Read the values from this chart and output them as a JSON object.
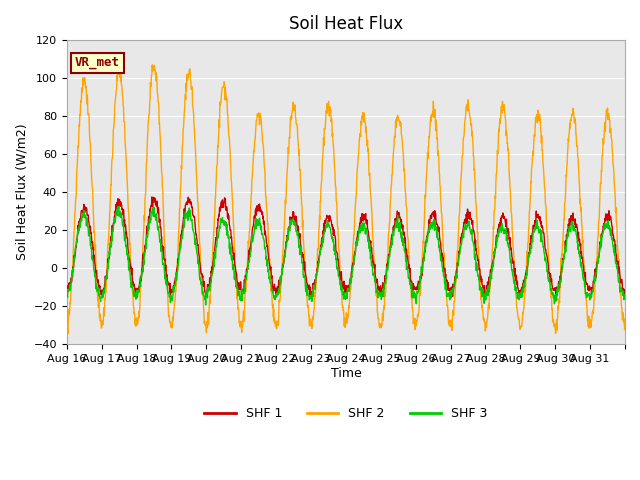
{
  "title": "Soil Heat Flux",
  "ylabel": "Soil Heat Flux (W/m2)",
  "xlabel": "Time",
  "ylim": [
    -40,
    120
  ],
  "bg_color": "#e8e8e8",
  "annotation_text": "VR_met",
  "annotation_color": "#8B0000",
  "annotation_bg": "#ffffcc",
  "legend_labels": [
    "SHF 1",
    "SHF 2",
    "SHF 3"
  ],
  "legend_colors": [
    "#cc0000",
    "#ffa500",
    "#00cc00"
  ],
  "xtick_labels": [
    "Aug 16",
    "Aug 17",
    "Aug 18",
    "Aug 19",
    "Aug 20",
    "Aug 21",
    "Aug 22",
    "Aug 23",
    "Aug 24",
    "Aug 25",
    "Aug 26",
    "Aug 27",
    "Aug 28",
    "Aug 29",
    "Aug 30",
    "Aug 31"
  ],
  "n_days": 16,
  "shf1_day_peaks": [
    32,
    35,
    36,
    36,
    35,
    33,
    27,
    27,
    27,
    27,
    28,
    28,
    27,
    27,
    26,
    27
  ],
  "shf2_day_peaks": [
    99,
    103,
    107,
    103,
    96,
    81,
    85,
    86,
    80,
    80,
    83,
    85,
    84,
    80,
    81,
    82
  ],
  "shf3_day_peaks": [
    28,
    30,
    29,
    29,
    25,
    24,
    24,
    23,
    23,
    23,
    24,
    23,
    22,
    22,
    22,
    23
  ],
  "shf1_night_min": -12,
  "shf2_night_min": -30,
  "shf3_night_min": -15,
  "ytick_vals": [
    -40,
    -20,
    0,
    20,
    40,
    60,
    80,
    100,
    120
  ]
}
